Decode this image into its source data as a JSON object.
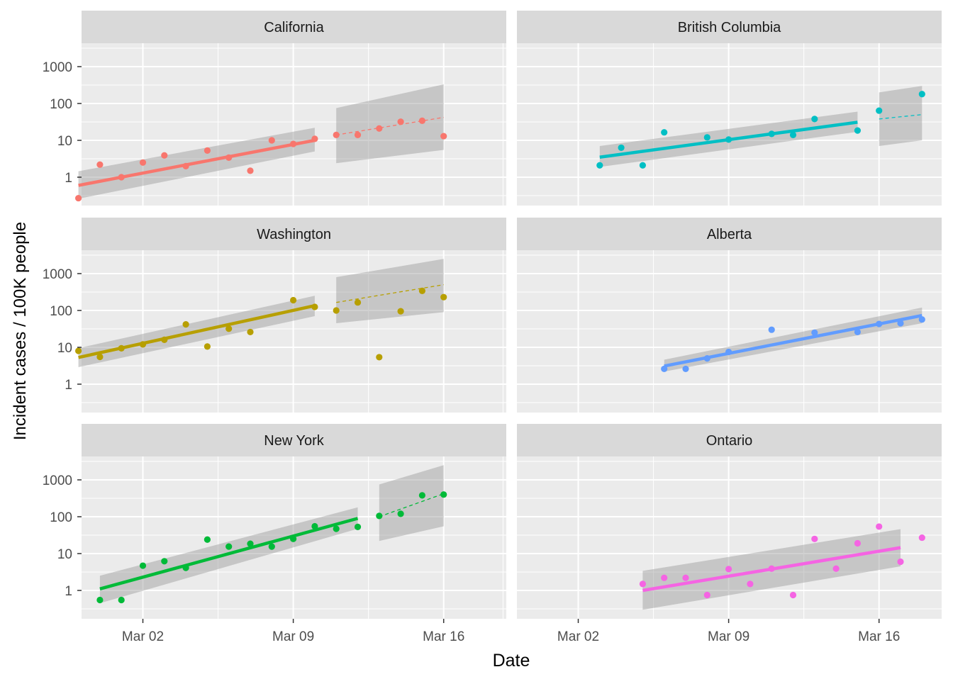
{
  "chart_data": {
    "type": "scatter",
    "xlabel": "Date",
    "ylabel": "Incident cases / 100K people",
    "scale_y": "log10",
    "grid": true,
    "facet_layout": "3 rows x 2 columns",
    "x_ticks": [
      {
        "day": 2,
        "label": "Mar 02"
      },
      {
        "day": 9,
        "label": "Mar 09"
      },
      {
        "day": 16,
        "label": "Mar 16"
      }
    ],
    "y_ticks": [
      {
        "value": 1,
        "label": "1"
      },
      {
        "value": 10,
        "label": "10"
      },
      {
        "value": 100,
        "label": "100"
      },
      {
        "value": 1000,
        "label": "1000"
      }
    ],
    "panels": [
      {
        "title": "California",
        "color": "#F8766D",
        "points": [
          [
            -1,
            0.27
          ],
          [
            0,
            2.2
          ],
          [
            1,
            1.0
          ],
          [
            2,
            2.5
          ],
          [
            3,
            3.9
          ],
          [
            4,
            2.0
          ],
          [
            5,
            5.3
          ],
          [
            6,
            3.4
          ],
          [
            7,
            1.5
          ],
          [
            8,
            10
          ],
          [
            9,
            8
          ],
          [
            10,
            11
          ],
          [
            11,
            14
          ],
          [
            12,
            14
          ],
          [
            13,
            21
          ],
          [
            14,
            32
          ],
          [
            15,
            34
          ],
          [
            16,
            13
          ]
        ],
        "fit": {
          "x": [
            -1,
            10
          ],
          "y": [
            0.6,
            10
          ],
          "ci_low": [
            0.26,
            5
          ],
          "ci_high": [
            1.45,
            22
          ]
        },
        "projection": {
          "x": [
            11,
            16
          ],
          "y": [
            14,
            42
          ],
          "ci_low": [
            2.4,
            5.5
          ],
          "ci_high": [
            75,
            330
          ]
        }
      },
      {
        "title": "British Columbia",
        "color": "#00BFC4",
        "points": [
          [
            3,
            2.1
          ],
          [
            4,
            6.3
          ],
          [
            5,
            2.1
          ],
          [
            6,
            16.5
          ],
          [
            8,
            12
          ],
          [
            9,
            10.5
          ],
          [
            11,
            15
          ],
          [
            12,
            14
          ],
          [
            13,
            38
          ],
          [
            15,
            18.5
          ],
          [
            16,
            64
          ],
          [
            18,
            180
          ]
        ],
        "fit": {
          "x": [
            3,
            15
          ],
          "y": [
            3.5,
            31
          ],
          "ci_low": [
            1.9,
            17
          ],
          "ci_high": [
            7,
            60
          ]
        },
        "projection": {
          "x": [
            16,
            18
          ],
          "y": [
            38,
            50
          ],
          "ci_low": [
            7,
            10
          ],
          "ci_high": [
            200,
            300
          ]
        }
      },
      {
        "title": "Washington",
        "color": "#B79F00",
        "points": [
          [
            -1,
            8
          ],
          [
            0,
            5.5
          ],
          [
            1,
            9.4
          ],
          [
            2,
            12
          ],
          [
            3,
            16
          ],
          [
            4,
            42
          ],
          [
            5,
            10.5
          ],
          [
            6,
            32
          ],
          [
            7,
            26
          ],
          [
            9,
            190
          ],
          [
            10,
            125
          ],
          [
            11,
            100
          ],
          [
            12,
            165
          ],
          [
            13,
            5.4
          ],
          [
            14,
            95
          ],
          [
            15,
            340
          ],
          [
            16,
            230
          ]
        ],
        "fit": {
          "x": [
            -1,
            10
          ],
          "y": [
            5.3,
            135
          ],
          "ci_low": [
            2.9,
            70
          ],
          "ci_high": [
            9.5,
            250
          ]
        },
        "projection": {
          "x": [
            11,
            16
          ],
          "y": [
            165,
            500
          ],
          "ci_low": [
            45,
            90
          ],
          "ci_high": [
            800,
            2500
          ]
        }
      },
      {
        "title": "Alberta",
        "color": "#619CFF",
        "points": [
          [
            6,
            2.6
          ],
          [
            7,
            2.6
          ],
          [
            8,
            5
          ],
          [
            9,
            7.5
          ],
          [
            11,
            30
          ],
          [
            13,
            25
          ],
          [
            15,
            26
          ],
          [
            16,
            43
          ],
          [
            17,
            45
          ],
          [
            18,
            57
          ]
        ],
        "fit": {
          "x": [
            6,
            18
          ],
          "y": [
            3.1,
            73
          ],
          "ci_low": [
            2.2,
            45
          ],
          "ci_high": [
            4.6,
            120
          ]
        },
        "projection": null
      },
      {
        "title": "New York",
        "color": "#00BA38",
        "points": [
          [
            0,
            0.55
          ],
          [
            1,
            0.55
          ],
          [
            2,
            4.7
          ],
          [
            3,
            6.2
          ],
          [
            4,
            4.1
          ],
          [
            5,
            24
          ],
          [
            6,
            15.5
          ],
          [
            7,
            18.5
          ],
          [
            8,
            15.5
          ],
          [
            9,
            25
          ],
          [
            10,
            55
          ],
          [
            11,
            47
          ],
          [
            12,
            53
          ],
          [
            13,
            105
          ],
          [
            14,
            120
          ],
          [
            15,
            380
          ],
          [
            16,
            400
          ]
        ],
        "fit": {
          "x": [
            0,
            12
          ],
          "y": [
            1.1,
            90
          ],
          "ci_low": [
            0.45,
            47
          ],
          "ci_high": [
            2.5,
            180
          ]
        },
        "projection": {
          "x": [
            13,
            16
          ],
          "y": [
            100,
            420
          ],
          "ci_low": [
            22,
            55
          ],
          "ci_high": [
            750,
            2500
          ]
        }
      },
      {
        "title": "Ontario",
        "color": "#F564E3",
        "points": [
          [
            5,
            1.5
          ],
          [
            6,
            2.2
          ],
          [
            7,
            2.2
          ],
          [
            8,
            0.75
          ],
          [
            9,
            3.8
          ],
          [
            10,
            1.5
          ],
          [
            11,
            3.9
          ],
          [
            12,
            0.75
          ],
          [
            13,
            25
          ],
          [
            14,
            3.9
          ],
          [
            15,
            19
          ],
          [
            16,
            54
          ],
          [
            17,
            6
          ],
          [
            18,
            27
          ]
        ],
        "fit": {
          "x": [
            5,
            17
          ],
          "y": [
            1.0,
            14.5
          ],
          "ci_low": [
            0.3,
            4.5
          ],
          "ci_high": [
            3.4,
            46
          ]
        },
        "projection": null
      }
    ]
  }
}
